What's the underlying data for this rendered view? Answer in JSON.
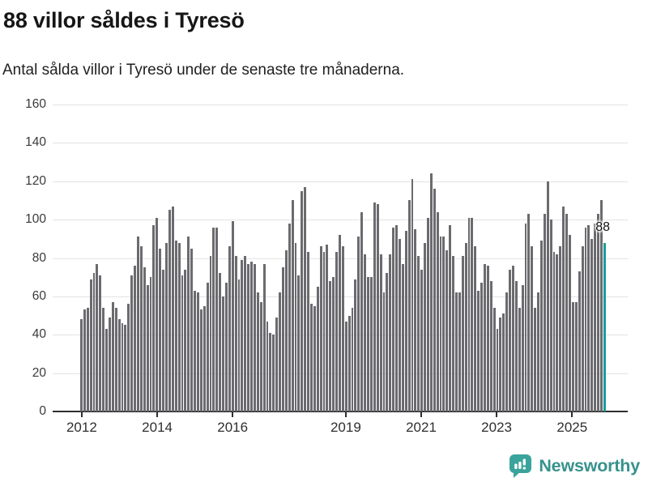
{
  "header": {
    "title": "88 villor såldes i Tyresö",
    "subtitle": "Antal sålda villor i Tyresö under de senaste tre månaderna."
  },
  "chart_data": {
    "type": "bar",
    "title": "88 villor såldes i Tyresö",
    "subtitle": "Antal sålda villor i Tyresö under de senaste tre månaderna.",
    "ylim": [
      0,
      160
    ],
    "yticks": [
      0,
      20,
      40,
      60,
      80,
      100,
      120,
      140,
      160
    ],
    "xticks": [
      {
        "label": "2012",
        "year": 2012
      },
      {
        "label": "2014",
        "year": 2014
      },
      {
        "label": "2016",
        "year": 2016
      },
      {
        "label": "2019",
        "year": 2019
      },
      {
        "label": "2021",
        "year": 2021
      },
      {
        "label": "2023",
        "year": 2023
      },
      {
        "label": "2025",
        "year": 2025
      }
    ],
    "start_year": 2012,
    "grid": true,
    "bar_color": "#6b6b6f",
    "highlight_color": "#179c9c",
    "values_by_year": {
      "2012": [
        48,
        53,
        54,
        69,
        72,
        77,
        71,
        54,
        43,
        49,
        57,
        54
      ],
      "2013": [
        48,
        46,
        45,
        56,
        71,
        76,
        91,
        86,
        75,
        66,
        70,
        97
      ],
      "2014": [
        101,
        85,
        74,
        88,
        105,
        107,
        89,
        88,
        71,
        74,
        91,
        85
      ],
      "2015": [
        63,
        62,
        53,
        55,
        67,
        81,
        96,
        96,
        72,
        60,
        67,
        86
      ],
      "2016": [
        99,
        81,
        69,
        79,
        81,
        77,
        78,
        77,
        62,
        57,
        77,
        47
      ],
      "2017": [
        41,
        40,
        49,
        62,
        75,
        84,
        98,
        110,
        88,
        71,
        115,
        117
      ],
      "2018": [
        83,
        56,
        55,
        65,
        86,
        83,
        87,
        68,
        70,
        83,
        92,
        86
      ],
      "2019": [
        47,
        50,
        54,
        69,
        91,
        104,
        82,
        70,
        70,
        109,
        108,
        82
      ],
      "2020": [
        62,
        72,
        82,
        96,
        97,
        90,
        77,
        94,
        110,
        121,
        95,
        81
      ],
      "2021": [
        74,
        88,
        101,
        124,
        116,
        104,
        91,
        91,
        84,
        97,
        81,
        62
      ],
      "2022": [
        62,
        81,
        88,
        101,
        101,
        86,
        63,
        67,
        77,
        76,
        68,
        54
      ],
      "2023": [
        43,
        49,
        51,
        62,
        74,
        76,
        68,
        54,
        66,
        98,
        103,
        86
      ],
      "2024": [
        54,
        62,
        89,
        103,
        120,
        100,
        83,
        82,
        86,
        107,
        103,
        92
      ],
      "2025": [
        57,
        57,
        73,
        86,
        96,
        97,
        90,
        98,
        103,
        110,
        88
      ]
    },
    "highlight": {
      "position": "last",
      "value": 88,
      "annotation": "88"
    }
  },
  "footer": {
    "brand": "Newsworthy",
    "brand_color": "#37928c",
    "logo_icon": "newsworthy-speech-bubble-bar-chart-icon"
  }
}
